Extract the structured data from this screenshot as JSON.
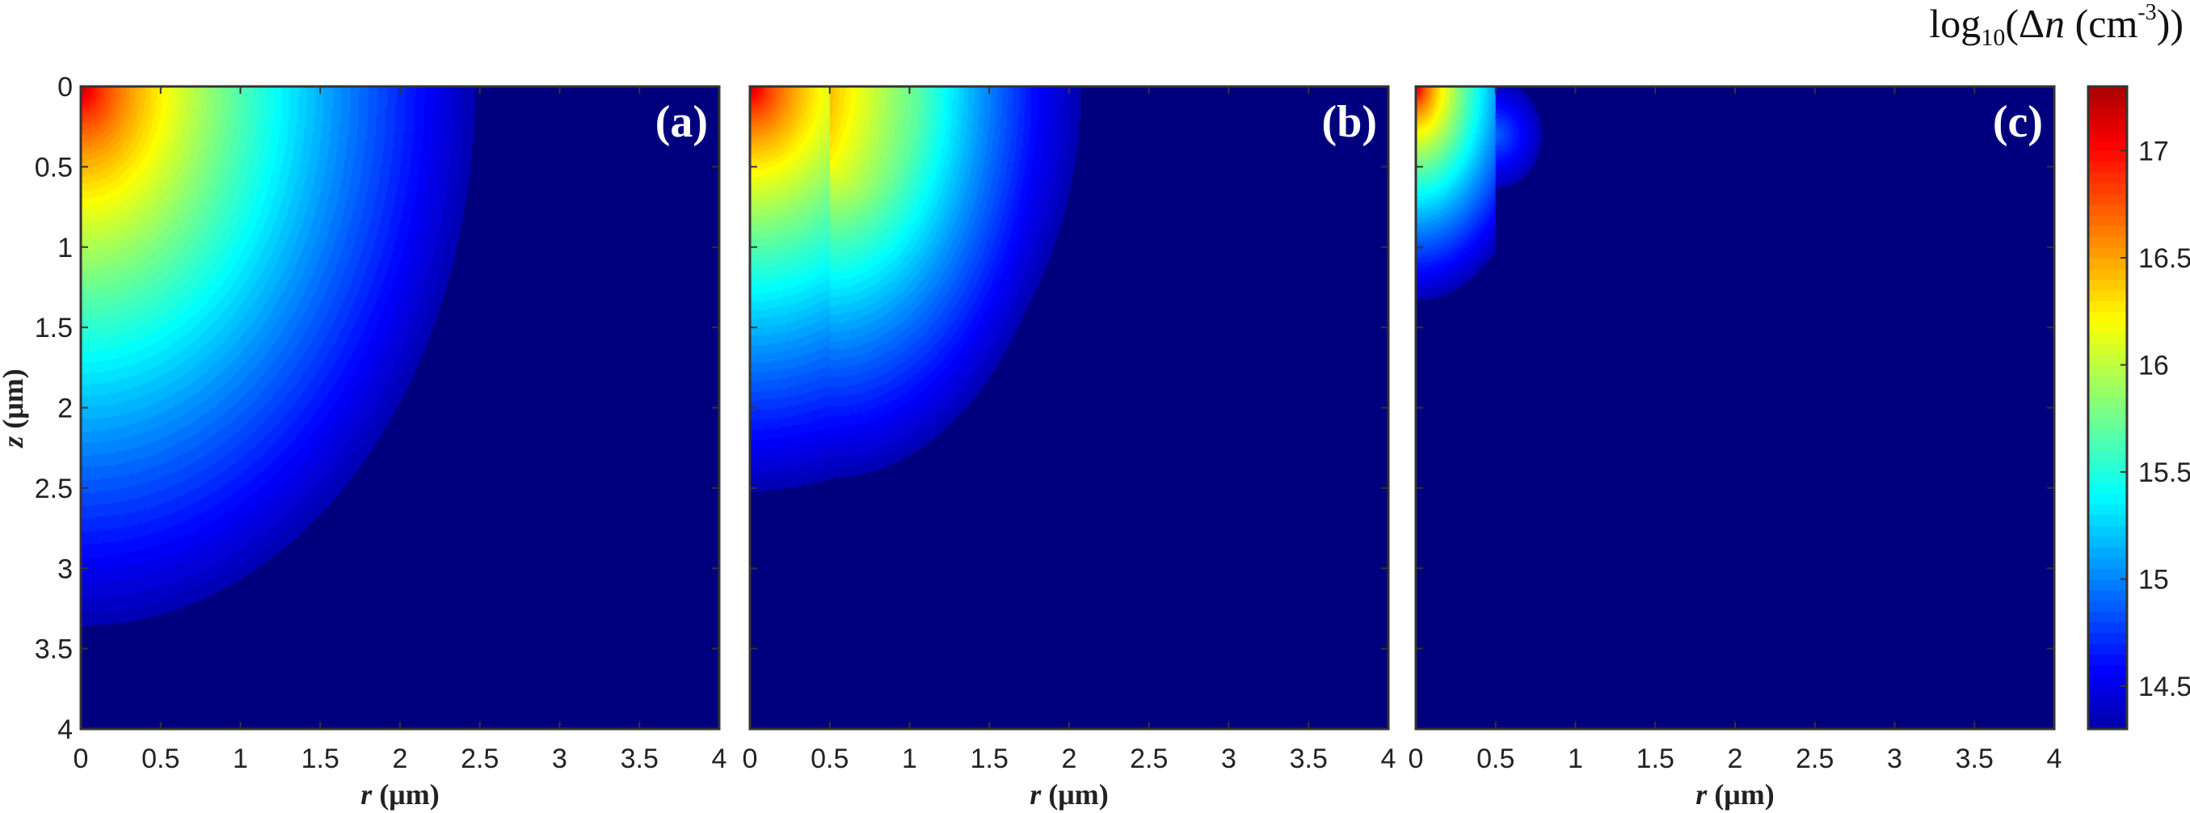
{
  "chart_data": {
    "type": "heatmap",
    "colormap": "jet",
    "colorbar": {
      "label_prefix": "log",
      "label_sub": "10",
      "label_open": "(Δ",
      "label_var": "n",
      "label_unit": " (cm",
      "label_sup": "-3",
      "label_close": "))",
      "range": [
        14.3,
        17.3
      ],
      "ticks": [
        14.5,
        15,
        15.5,
        16,
        16.5,
        17
      ],
      "tick_labels": [
        "14.5",
        "15",
        "15.5",
        "16",
        "16.5",
        "17"
      ]
    },
    "xlabel_var": "r",
    "xlabel_unit": " (μm)",
    "ylabel_var": "z",
    "ylabel_unit": " (μm)",
    "xlim": [
      0,
      4
    ],
    "ylim": [
      0,
      4
    ],
    "y_reversed": true,
    "x_ticks": [
      0,
      0.5,
      1,
      1.5,
      2,
      2.5,
      3,
      3.5,
      4
    ],
    "x_tick_labels": [
      "0",
      "0.5",
      "1",
      "1.5",
      "2",
      "2.5",
      "3",
      "3.5",
      "4"
    ],
    "y_ticks": [
      0,
      0.5,
      1,
      1.5,
      2,
      2.5,
      3,
      3.5,
      4
    ],
    "y_tick_labels": [
      "0",
      "0.5",
      "1",
      "1.5",
      "2",
      "2.5",
      "3",
      "3.5",
      "4"
    ],
    "panels": [
      {
        "label": "(a)",
        "peak_value": 17.3,
        "background_value": 14.3,
        "radial_extent_at_surface": 2.5,
        "depth_extent_on_axis": 3.4,
        "cutoff_r": null,
        "cutoff_z": null
      },
      {
        "label": "(b)",
        "peak_value": 17.3,
        "background_value": 14.3,
        "radial_extent_at_surface": 2.1,
        "depth_extent_on_axis": 2.55,
        "cutoff_r": 0.5,
        "cutoff_z": 2.55
      },
      {
        "label": "(c)",
        "peak_value": 17.3,
        "background_value": 14.3,
        "radial_extent_at_surface": 0.8,
        "depth_extent_on_axis": 1.35,
        "cutoff_r": 0.5,
        "cutoff_z": 1.35
      }
    ]
  }
}
